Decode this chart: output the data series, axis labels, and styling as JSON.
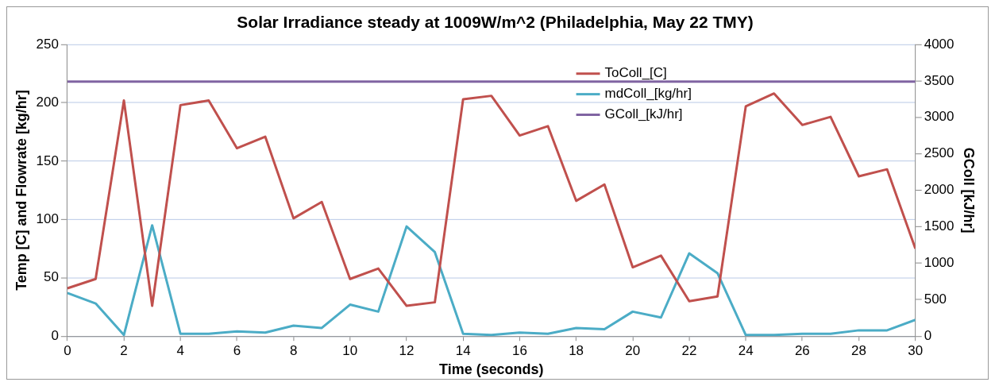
{
  "chart_data": {
    "type": "line",
    "title": "Solar Irradiance steady at 1009W/m^2 (Philadelphia, May 22 TMY)",
    "xlabel": "Time (seconds)",
    "ylabel": "Temp [C] and Flowrate [kg/hr]",
    "y2label": "GColl [kJ/hr]",
    "x": [
      0,
      1,
      2,
      3,
      4,
      5,
      6,
      7,
      8,
      9,
      10,
      11,
      12,
      13,
      14,
      15,
      16,
      17,
      18,
      19,
      20,
      21,
      22,
      23,
      24,
      25,
      26,
      27,
      28,
      29,
      30
    ],
    "series": [
      {
        "name": "ToColl_[C]",
        "color": "#c0504d",
        "values": [
          41,
          49,
          202,
          26,
          198,
          202,
          161,
          171,
          101,
          115,
          49,
          58,
          26,
          29,
          203,
          206,
          172,
          180,
          116,
          130,
          59,
          69,
          30,
          34,
          197,
          208,
          181,
          188,
          137,
          143,
          75
        ]
      },
      {
        "name": "mdColl_[kg/hr]",
        "color": "#4bacc6",
        "values": [
          37,
          28,
          1,
          95,
          2,
          2,
          4,
          3,
          9,
          7,
          27,
          21,
          94,
          72,
          2,
          1,
          3,
          2,
          7,
          6,
          21,
          16,
          71,
          54,
          1,
          1,
          2,
          2,
          5,
          5,
          14
        ]
      },
      {
        "name": "GColl_[kJ/hr]",
        "color": "#8064a2",
        "axis": "y2",
        "values": [
          3490,
          3490,
          3490,
          3490,
          3490,
          3490,
          3490,
          3490,
          3490,
          3490,
          3490,
          3490,
          3490,
          3490,
          3490,
          3490,
          3490,
          3490,
          3490,
          3490,
          3490,
          3490,
          3490,
          3490,
          3490,
          3490,
          3490,
          3490,
          3490,
          3490,
          3490
        ]
      }
    ],
    "xlim": [
      0,
      30
    ],
    "xticks": [
      0,
      2,
      4,
      6,
      8,
      10,
      12,
      14,
      16,
      18,
      20,
      22,
      24,
      26,
      28,
      30
    ],
    "ylim": [
      0,
      250
    ],
    "yticks": [
      0,
      50,
      100,
      150,
      200,
      250
    ],
    "y2lim": [
      0,
      4000
    ],
    "y2ticks": [
      0,
      500,
      1000,
      1500,
      2000,
      2500,
      3000,
      3500,
      4000
    ],
    "grid": "y",
    "legend": "top right",
    "marker": "none",
    "line_style": "solid"
  }
}
